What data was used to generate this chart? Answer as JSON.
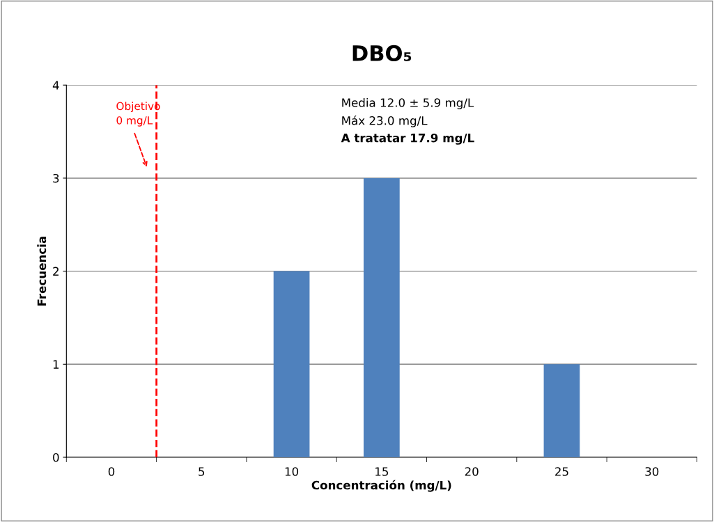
{
  "chart_data": {
    "type": "bar",
    "title": "DBO₅",
    "xlabel": "Concentración (mg/L)",
    "ylabel": "Frecuencia",
    "categories": [
      "0",
      "5",
      "10",
      "15",
      "20",
      "25",
      "30"
    ],
    "values": [
      0,
      0,
      2,
      3,
      0,
      1,
      0
    ],
    "color": "#4f81bd",
    "ylim": [
      0,
      4
    ],
    "yticks": [
      0,
      1,
      2,
      3,
      4
    ],
    "grid": "y",
    "ref_lines": [
      {
        "axis": "x",
        "value": "0",
        "label": "Objetivo\n0 mg/L",
        "color": "#ff0000",
        "line_style": "dashed"
      }
    ],
    "annotations": [
      "Media 12.0 ± 5.9 mg/L",
      "Máx 23.0 mg/L",
      "A tratatar 17.9 mg/L"
    ]
  }
}
